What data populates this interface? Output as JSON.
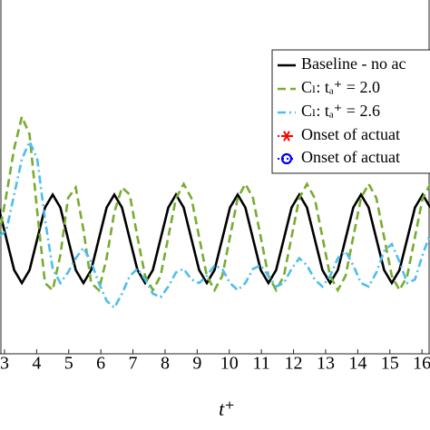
{
  "chart_data": {
    "type": "line",
    "x_label": "t⁺",
    "x": [
      2.82,
      3.06,
      3.3,
      3.54,
      3.78,
      4.02,
      4.26,
      4.5,
      4.74,
      4.98,
      5.22,
      5.46,
      5.7,
      5.94,
      6.18,
      6.42,
      6.66,
      6.9,
      7.14,
      7.38,
      7.62,
      7.86,
      8.1,
      8.34,
      8.58,
      8.82,
      9.06,
      9.3,
      9.54,
      9.78,
      10.02,
      10.26,
      10.5,
      10.74,
      10.98,
      11.22,
      11.46,
      11.7,
      11.94,
      12.18,
      12.42,
      12.66,
      12.9,
      13.14,
      13.38,
      13.62,
      13.86,
      14.1,
      14.34,
      14.58,
      14.82,
      15.06,
      15.3,
      15.54,
      15.78,
      16.02,
      16.26
    ],
    "series": [
      {
        "name": "Baseline - no ac",
        "color": "#000000",
        "dash": "solid",
        "values": [
          0.413,
          0.325,
          0.237,
          0.2,
          0.237,
          0.325,
          0.413,
          0.45,
          0.413,
          0.325,
          0.237,
          0.2,
          0.237,
          0.325,
          0.413,
          0.45,
          0.413,
          0.325,
          0.237,
          0.2,
          0.237,
          0.325,
          0.413,
          0.45,
          0.413,
          0.325,
          0.237,
          0.2,
          0.237,
          0.325,
          0.413,
          0.45,
          0.413,
          0.325,
          0.237,
          0.2,
          0.237,
          0.325,
          0.413,
          0.45,
          0.413,
          0.325,
          0.237,
          0.2,
          0.237,
          0.325,
          0.413,
          0.45,
          0.413,
          0.325,
          0.237,
          0.2,
          0.237,
          0.325,
          0.413,
          0.45,
          0.413
        ]
      },
      {
        "name": "Cₗ: tₐ⁺ = 2.0",
        "color": "#77ac30",
        "dash": "dashed",
        "values": [
          0.33,
          0.45,
          0.58,
          0.67,
          0.62,
          0.4,
          0.2,
          0.18,
          0.28,
          0.44,
          0.47,
          0.35,
          0.2,
          0.18,
          0.27,
          0.4,
          0.47,
          0.45,
          0.33,
          0.22,
          0.18,
          0.22,
          0.33,
          0.44,
          0.48,
          0.44,
          0.33,
          0.22,
          0.18,
          0.22,
          0.33,
          0.44,
          0.48,
          0.44,
          0.33,
          0.22,
          0.18,
          0.22,
          0.33,
          0.44,
          0.48,
          0.44,
          0.33,
          0.22,
          0.18,
          0.22,
          0.33,
          0.44,
          0.48,
          0.44,
          0.33,
          0.22,
          0.18,
          0.22,
          0.33,
          0.44,
          0.48
        ]
      },
      {
        "name": "Cₗ: tₐ⁺ = 2.6",
        "color": "#4dbeee",
        "dash": "dashdot",
        "values": [
          0.33,
          0.35,
          0.45,
          0.55,
          0.6,
          0.55,
          0.38,
          0.24,
          0.2,
          0.23,
          0.27,
          0.3,
          0.26,
          0.2,
          0.15,
          0.13,
          0.17,
          0.22,
          0.24,
          0.21,
          0.17,
          0.16,
          0.19,
          0.23,
          0.24,
          0.21,
          0.2,
          0.22,
          0.25,
          0.24,
          0.2,
          0.18,
          0.2,
          0.24,
          0.25,
          0.22,
          0.19,
          0.2,
          0.24,
          0.27,
          0.25,
          0.21,
          0.19,
          0.22,
          0.27,
          0.29,
          0.25,
          0.2,
          0.19,
          0.23,
          0.29,
          0.31,
          0.26,
          0.2,
          0.21,
          0.28,
          0.34
        ]
      }
    ],
    "legend_extra": [
      {
        "name": "Onset of actuat",
        "color": "#ff0000",
        "marker": "asterisk",
        "dash": "dotted"
      },
      {
        "name": "Onset of actuat",
        "color": "#0000ff",
        "marker": "circle",
        "dash": "dotted"
      }
    ],
    "xlim": [
      2.86,
      16.25
    ],
    "xticks": [
      3,
      4,
      5,
      6,
      7,
      8,
      9,
      10,
      11,
      12,
      13,
      14,
      15,
      16
    ],
    "ylim": [
      0,
      1
    ],
    "legend": "upper right"
  }
}
